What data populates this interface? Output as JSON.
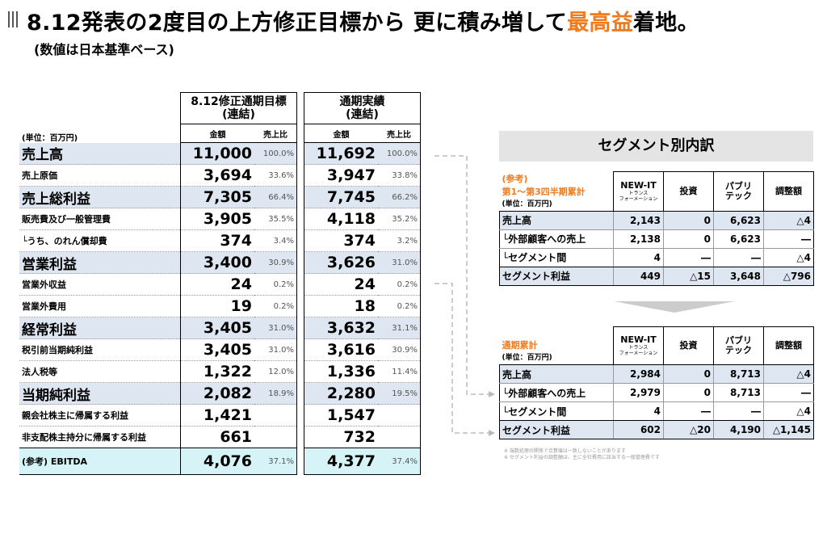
{
  "title": {
    "part1": "8.12発表の2度目の上方修正目標から 更に積み増して",
    "highlight": "最高益",
    "part2": "着地。"
  },
  "subtitle": "(数値は日本基準ベース)",
  "main": {
    "unit": "(単位：百万円)",
    "col1_title": "8.12修正通期目標\n(連結)",
    "col2_title": "通期実績\n(連結)",
    "sub_amount": "金額",
    "sub_ratio": "売上比",
    "rows": [
      {
        "label": "売上高",
        "v1": "11,000",
        "p1": "100.0%",
        "v2": "11,692",
        "p2": "100.0%"
      },
      {
        "label": "売上原価",
        "v1": "3,694",
        "p1": "33.6%",
        "v2": "3,947",
        "p2": "33.8%"
      },
      {
        "label": "売上総利益",
        "v1": "7,305",
        "p1": "66.4%",
        "v2": "7,745",
        "p2": "66.2%"
      },
      {
        "label": "販売費及び一般管理費",
        "v1": "3,905",
        "p1": "35.5%",
        "v2": "4,118",
        "p2": "35.2%"
      },
      {
        "label": "└うち、のれん償却費",
        "v1": "374",
        "p1": "3.4%",
        "v2": "374",
        "p2": "3.2%"
      },
      {
        "label": "営業利益",
        "v1": "3,400",
        "p1": "30.9%",
        "v2": "3,626",
        "p2": "31.0%"
      },
      {
        "label": "営業外収益",
        "v1": "24",
        "p1": "0.2%",
        "v2": "24",
        "p2": "0.2%"
      },
      {
        "label": "営業外費用",
        "v1": "19",
        "p1": "0.2%",
        "v2": "18",
        "p2": "0.2%"
      },
      {
        "label": "経常利益",
        "v1": "3,405",
        "p1": "31.0%",
        "v2": "3,632",
        "p2": "31.1%"
      },
      {
        "label": "税引前当期純利益",
        "v1": "3,405",
        "p1": "31.0%",
        "v2": "3,616",
        "p2": "30.9%"
      },
      {
        "label": "法人税等",
        "v1": "1,322",
        "p1": "12.0%",
        "v2": "1,336",
        "p2": "11.4%"
      },
      {
        "label": "当期純利益",
        "v1": "2,082",
        "p1": "18.9%",
        "v2": "2,280",
        "p2": "19.5%"
      },
      {
        "label": "親会社株主に帰属する利益",
        "v1": "1,421",
        "p1": "",
        "v2": "1,547",
        "p2": ""
      },
      {
        "label": "非支配株主持分に帰属する利益",
        "v1": "661",
        "p1": "",
        "v2": "732",
        "p2": ""
      },
      {
        "label": "(参考) EBITDA",
        "v1": "4,076",
        "p1": "37.1%",
        "v2": "4,377",
        "p2": "37.4%"
      }
    ]
  },
  "segment": {
    "title": "セグメント別内訳",
    "headers": {
      "newit": "NEW-IT",
      "newit_sub": "トランス\nフォーメーション",
      "invest": "投資",
      "public": "パブリ\nテック",
      "adjust": "調整額"
    },
    "unit": "(単位：百万円)",
    "q3": {
      "label1": "(参考)",
      "label2": "第1～第3四半期累計",
      "rows": [
        {
          "label": "売上高",
          "a": "2,143",
          "b": "0",
          "c": "6,623",
          "d": "△4"
        },
        {
          "label": "└外部顧客への売上",
          "a": "2,138",
          "b": "0",
          "c": "6,623",
          "d": "―"
        },
        {
          "label": "└セグメント間",
          "a": "4",
          "b": "―",
          "c": "―",
          "d": "△4"
        },
        {
          "label": "セグメント利益",
          "a": "449",
          "b": "△15",
          "c": "3,648",
          "d": "△796"
        }
      ]
    },
    "full": {
      "label1": "通期累計",
      "rows": [
        {
          "label": "売上高",
          "a": "2,984",
          "b": "0",
          "c": "8,713",
          "d": "△4"
        },
        {
          "label": "└外部顧客への売上",
          "a": "2,979",
          "b": "0",
          "c": "8,713",
          "d": "―"
        },
        {
          "label": "└セグメント間",
          "a": "4",
          "b": "―",
          "c": "―",
          "d": "△4"
        },
        {
          "label": "セグメント利益",
          "a": "602",
          "b": "△20",
          "c": "4,190",
          "d": "△1,145"
        }
      ]
    },
    "notes": [
      "※ 端数処理の関係で合算値は一致しないことがあります",
      "※ セグメント利益の調整額は、主に全社費用に該当する一般管理費です"
    ]
  }
}
